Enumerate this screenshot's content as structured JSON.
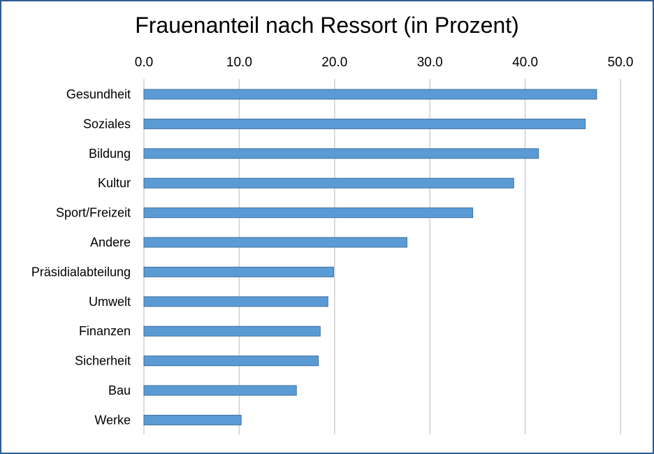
{
  "chart_data": {
    "type": "bar",
    "orientation": "horizontal",
    "title": "Frauenanteil nach Ressort (in Prozent)",
    "xlabel": "",
    "ylabel": "",
    "categories": [
      "Gesundheit",
      "Soziales",
      "Bildung",
      "Kultur",
      "Sport/Freizeit",
      "Andere",
      "Präsidialabteilung",
      "Umwelt",
      "Finanzen",
      "Sicherheit",
      "Bau",
      "Werke"
    ],
    "values": [
      47.5,
      46.3,
      41.4,
      38.8,
      34.5,
      27.6,
      19.9,
      19.3,
      18.5,
      18.3,
      16.0,
      10.2
    ],
    "xlim": [
      0,
      50
    ],
    "ticks": [
      "0.0",
      "10.0",
      "20.0",
      "30.0",
      "40.0",
      "50.0"
    ],
    "grid": true,
    "axis_position": "top",
    "bar_color": "#5b9bd5",
    "bar_edge_color": "#41719c"
  }
}
